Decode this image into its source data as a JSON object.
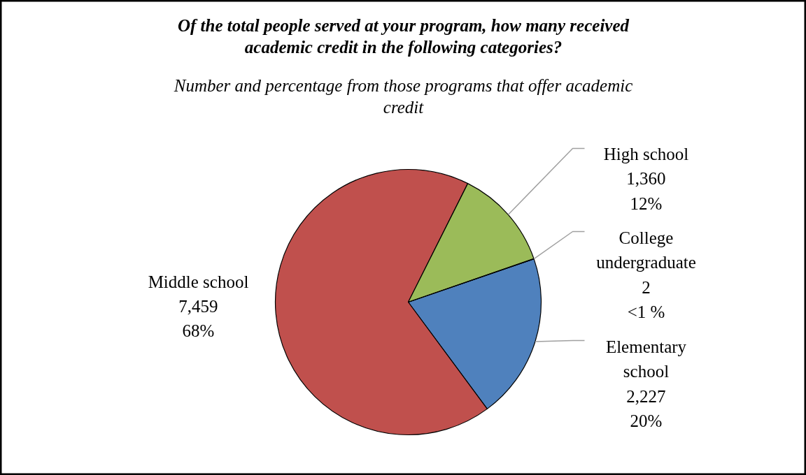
{
  "chart_data": {
    "type": "pie",
    "title": "Of the total people served at your program, how many received academic credit in the following categories?",
    "subtitle": "Number and percentage from those programs that offer academic credit",
    "categories": [
      "Elementary school",
      "Middle school",
      "High school",
      "College undergraduate"
    ],
    "values": [
      2227,
      7459,
      1360,
      2
    ],
    "colors": [
      "#4f81bd",
      "#c0504d",
      "#9bbb59",
      "#8064a2"
    ],
    "value_labels": [
      "2,227\n20%",
      "7,459\n68%",
      "1,360\n12%",
      "2\n<1 %"
    ]
  }
}
